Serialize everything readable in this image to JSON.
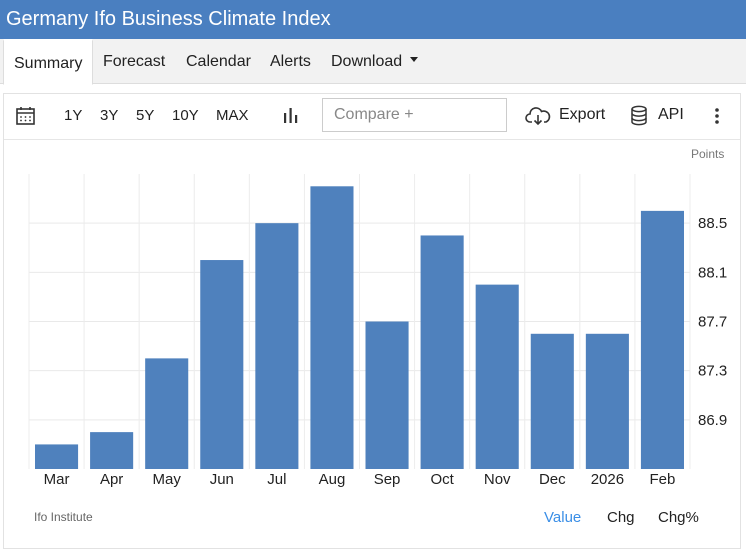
{
  "title": "Germany Ifo Business Climate Index",
  "tabs": [
    {
      "label": "Summary"
    },
    {
      "label": "Forecast"
    },
    {
      "label": "Calendar"
    },
    {
      "label": "Alerts"
    },
    {
      "label": "Download"
    }
  ],
  "toolbar": {
    "ranges": [
      "1Y",
      "3Y",
      "5Y",
      "10Y",
      "MAX"
    ],
    "compare_placeholder": "Compare +",
    "export_label": "Export",
    "api_label": "API"
  },
  "units_label": "Points",
  "source_label": "Ifo Institute",
  "modes": [
    {
      "label": "Value",
      "active": true
    },
    {
      "label": "Chg",
      "active": false
    },
    {
      "label": "Chg%",
      "active": false
    }
  ],
  "colors": {
    "header": "#4a7fc0",
    "bar": "#4f81bd",
    "active_mode": "#3a8ee6"
  },
  "chart_data": {
    "type": "bar",
    "categories": [
      "Mar",
      "Apr",
      "May",
      "Jun",
      "Jul",
      "Aug",
      "Sep",
      "Oct",
      "Nov",
      "Dec",
      "2026",
      "Feb"
    ],
    "values": [
      86.7,
      86.8,
      87.4,
      88.2,
      88.5,
      88.8,
      87.7,
      88.4,
      88.0,
      87.6,
      87.6,
      88.6
    ],
    "yticks": [
      86.9,
      87.3,
      87.7,
      88.1,
      88.5
    ],
    "ylim": [
      86.5,
      88.9
    ],
    "ylabel": "Points",
    "grid": true,
    "y_axis_position": "right"
  }
}
